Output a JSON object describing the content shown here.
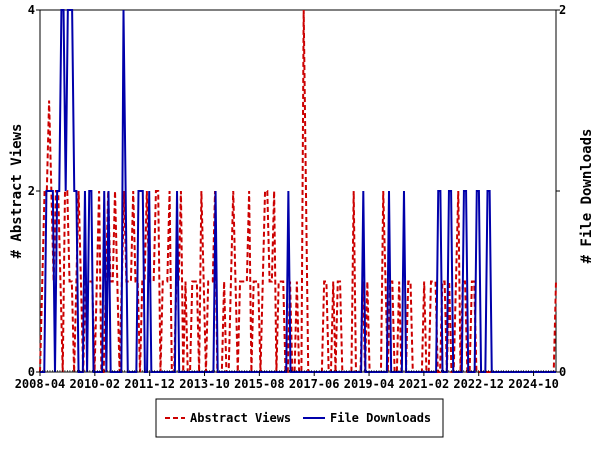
{
  "chart_data": {
    "type": "line",
    "ylabel_left": "# Abstract Views",
    "ylabel_right": "# File Downloads",
    "ylim_left": [
      0,
      4
    ],
    "ylim_right": [
      0,
      2
    ],
    "yticks_left": [
      "0",
      "2",
      "4"
    ],
    "yticks_right": [
      "0",
      "1",
      "2"
    ],
    "x_tick_labels": [
      "2008-04",
      "2010-02",
      "2011-12",
      "2013-10",
      "2015-08",
      "2017-06",
      "2019-04",
      "2021-02",
      "2022-12",
      "2024-10"
    ],
    "x_start": "2008-04",
    "x_end": "2025-07",
    "grid": false,
    "legend_position": "bottom",
    "series": [
      {
        "name": "Abstract Views",
        "axis": "left",
        "color": "#cc0000",
        "style": "dashed",
        "values": [
          0,
          1,
          2,
          2,
          3,
          2,
          1,
          2,
          2,
          1,
          0,
          2,
          2,
          1,
          1,
          0,
          1,
          2,
          1,
          0,
          1,
          1,
          1,
          1,
          0,
          1,
          2,
          0,
          0,
          1,
          2,
          1,
          1,
          2,
          1,
          0,
          1,
          2,
          1,
          1,
          1,
          2,
          1,
          1,
          0,
          1,
          1,
          2,
          1,
          1,
          1,
          2,
          2,
          0,
          1,
          1,
          1,
          2,
          0,
          0,
          1,
          1,
          2,
          0,
          1,
          0,
          0,
          1,
          1,
          1,
          0,
          2,
          1,
          0,
          1,
          1,
          1,
          2,
          0,
          0,
          0,
          1,
          0,
          0,
          1,
          2,
          1,
          0,
          1,
          1,
          1,
          1,
          2,
          0,
          1,
          1,
          1,
          0,
          1,
          2,
          2,
          1,
          1,
          2,
          0,
          1,
          1,
          1,
          0,
          0,
          1,
          0,
          0,
          1,
          0,
          0,
          4,
          2,
          0,
          0,
          0,
          0,
          0,
          0,
          0,
          1,
          1,
          0,
          0,
          1,
          0,
          1,
          1,
          0,
          0,
          0,
          0,
          0,
          2,
          0,
          0,
          0,
          1,
          0,
          1,
          0,
          0,
          0,
          0,
          0,
          0,
          2,
          1,
          0,
          1,
          1,
          0,
          0,
          1,
          0,
          0,
          0,
          1,
          1,
          0,
          0,
          0,
          0,
          0,
          1,
          0,
          0,
          1,
          1,
          1,
          0,
          0,
          1,
          1,
          0,
          1,
          0,
          0,
          1,
          2,
          0,
          1,
          1,
          0,
          0,
          1,
          1,
          0,
          0,
          0,
          0,
          0,
          0,
          0,
          0,
          0,
          0,
          0,
          0,
          0,
          0,
          0,
          0,
          0,
          0,
          0,
          0,
          0,
          0,
          0,
          0,
          0,
          0,
          0,
          0,
          0,
          0,
          0,
          0,
          0,
          0,
          0,
          1
        ]
      },
      {
        "name": "File Downloads",
        "axis": "right",
        "color": "#0000aa",
        "style": "solid",
        "values": [
          0,
          0,
          0,
          1,
          1,
          1,
          1,
          0,
          1,
          1,
          2,
          2,
          1,
          2,
          2,
          2,
          1,
          1,
          0,
          0,
          0,
          1,
          0,
          1,
          1,
          0,
          0,
          0,
          0,
          0,
          1,
          0,
          1,
          0,
          0,
          0,
          0,
          0,
          0,
          2,
          1,
          0,
          0,
          0,
          0,
          0,
          1,
          1,
          1,
          0,
          0,
          1,
          0,
          0,
          0,
          0,
          0,
          0,
          0,
          0,
          0,
          0,
          0,
          0,
          1,
          0,
          0,
          0,
          0,
          0,
          0,
          0,
          0,
          0,
          0,
          0,
          0,
          0,
          0,
          0,
          0,
          0,
          1,
          0,
          0,
          0,
          0,
          0,
          0,
          0,
          0,
          0,
          0,
          0,
          0,
          0,
          0,
          0,
          0,
          0,
          0,
          0,
          0,
          0,
          0,
          0,
          0,
          0,
          0,
          0,
          0,
          0,
          0,
          0,
          0,
          0,
          1,
          0,
          0,
          0,
          0,
          0,
          0,
          0,
          0,
          0,
          0,
          0,
          0,
          0,
          0,
          0,
          0,
          0,
          0,
          0,
          0,
          0,
          0,
          0,
          0,
          0,
          0,
          0,
          0,
          0,
          0,
          0,
          0,
          0,
          0,
          1,
          0,
          0,
          0,
          0,
          0,
          0,
          0,
          0,
          0,
          0,
          0,
          1,
          0,
          0,
          0,
          0,
          0,
          0,
          1,
          0,
          0,
          0,
          0,
          0,
          0,
          0,
          0,
          0,
          0,
          0,
          0,
          0,
          0,
          0,
          1,
          1,
          0,
          0,
          0,
          1,
          1,
          0,
          0,
          0,
          0,
          0,
          1,
          1,
          0,
          0,
          0,
          0,
          1,
          1,
          0,
          0,
          0,
          1,
          1,
          0,
          0,
          0,
          0,
          0,
          0,
          0,
          0,
          0,
          0,
          0,
          0,
          0,
          0,
          0,
          0,
          0,
          0,
          0,
          0,
          0,
          0,
          0,
          0,
          0,
          0,
          0,
          0,
          0,
          0,
          0
        ]
      }
    ]
  }
}
